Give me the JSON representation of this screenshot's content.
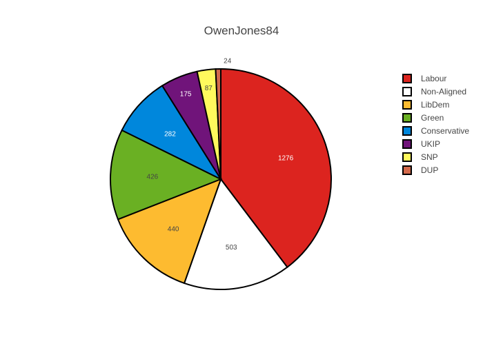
{
  "chart_data": {
    "type": "pie",
    "title": "OwenJones84",
    "categories": [
      "Labour",
      "Non-Aligned",
      "LibDem",
      "Green",
      "Conservative",
      "UKIP",
      "SNP",
      "DUP"
    ],
    "values": [
      1276,
      503,
      440,
      426,
      282,
      175,
      87,
      24
    ],
    "colors": [
      "#dc241f",
      "#ffffff",
      "#fdbb30",
      "#6ab023",
      "#0087dc",
      "#70147a",
      "#fff95d",
      "#d46a4c"
    ],
    "label_colors": [
      "#ffffff",
      "#444444",
      "#444444",
      "#444444",
      "#ffffff",
      "#ffffff",
      "#444444",
      "#444444"
    ],
    "legend": {
      "position": "right",
      "items": [
        "Labour",
        "Non-Aligned",
        "LibDem",
        "Green",
        "Conservative",
        "UKIP",
        "SNP",
        "DUP"
      ]
    }
  }
}
